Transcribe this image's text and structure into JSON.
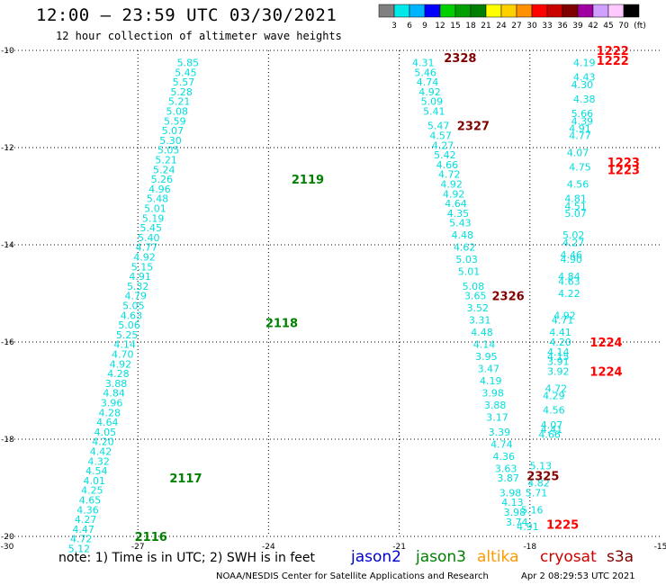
{
  "header": {
    "title": "12:00 – 23:59 UTC 03/30/2021",
    "subtitle": "12 hour collection of altimeter wave heights"
  },
  "colorbar": {
    "unit": "(ft)",
    "ticks": [
      "3",
      "6",
      "9",
      "12",
      "15",
      "18",
      "21",
      "24",
      "27",
      "30",
      "33",
      "36",
      "39",
      "42",
      "45",
      "70"
    ],
    "colors": [
      "#808080",
      "#00e8e8",
      "#00b4ff",
      "#0000ff",
      "#00d000",
      "#00a000",
      "#008000",
      "#ffff00",
      "#ffd000",
      "#ff9000",
      "#ff0000",
      "#c80000",
      "#800000",
      "#a000a0",
      "#d0a0ff",
      "#ffc8ff",
      "#000000"
    ]
  },
  "footer": {
    "note": "note: 1) Time is in UTC; 2) SWH is in feet",
    "satellites": [
      {
        "name": "jason2",
        "color": "#0000cc"
      },
      {
        "name": "jason3",
        "color": "#008000"
      },
      {
        "name": "altika",
        "color": "#ff9900"
      },
      {
        "name": "cryosat",
        "color": "#cc0000"
      },
      {
        "name": "s3a",
        "color": "#800000"
      }
    ],
    "credit": "NOAA/NESDIS Center for Satellite Applications and Research",
    "timestamp": "Apr  2 08:29:53 UTC 2021"
  },
  "chart_data": {
    "type": "scatter",
    "xlim": [
      -30,
      -15
    ],
    "ylim": [
      -20,
      -10
    ],
    "xticks": [
      "-30",
      "-27",
      "-24",
      "-21",
      "-18",
      "-15"
    ],
    "yticks": [
      "-10",
      "-12",
      "-14",
      "-16",
      "-18",
      "-20"
    ],
    "grid": true,
    "value_color": "#00dede",
    "tracks": [
      {
        "points": [
          {
            "lon": -25.85,
            "lat": -10.25,
            "v": "5.85"
          },
          {
            "lon": -25.9,
            "lat": -10.45,
            "v": "5.45"
          },
          {
            "lon": -25.95,
            "lat": -10.65,
            "v": "5.57"
          },
          {
            "lon": -26.0,
            "lat": -10.85,
            "v": "5.28"
          },
          {
            "lon": -26.05,
            "lat": -11.05,
            "v": "5.21"
          },
          {
            "lon": -26.1,
            "lat": -11.25,
            "v": "5.08"
          },
          {
            "lon": -26.15,
            "lat": -11.45,
            "v": "5.59"
          },
          {
            "lon": -26.2,
            "lat": -11.65,
            "v": "5.07"
          },
          {
            "lon": -26.25,
            "lat": -11.85,
            "v": "5.30"
          },
          {
            "lon": -26.3,
            "lat": -12.05,
            "v": "5.05"
          },
          {
            "lon": -26.35,
            "lat": -12.25,
            "v": "5.21"
          },
          {
            "lon": -26.4,
            "lat": -12.45,
            "v": "5.24"
          },
          {
            "lon": -26.45,
            "lat": -12.65,
            "v": "5.26"
          },
          {
            "lon": -26.5,
            "lat": -12.85,
            "v": "4.96"
          },
          {
            "lon": -26.55,
            "lat": -13.05,
            "v": "5.48"
          },
          {
            "lon": -26.6,
            "lat": -13.25,
            "v": "5.01"
          },
          {
            "lon": -26.65,
            "lat": -13.45,
            "v": "5.19"
          },
          {
            "lon": -26.7,
            "lat": -13.65,
            "v": "5.45"
          },
          {
            "lon": -26.75,
            "lat": -13.85,
            "v": "5.40"
          },
          {
            "lon": -26.8,
            "lat": -14.05,
            "v": "4.77"
          },
          {
            "lon": -26.85,
            "lat": -14.25,
            "v": "4.92"
          },
          {
            "lon": -26.9,
            "lat": -14.45,
            "v": "5.15"
          },
          {
            "lon": -26.95,
            "lat": -14.65,
            "v": "4.91"
          },
          {
            "lon": -27.0,
            "lat": -14.85,
            "v": "5.32"
          },
          {
            "lon": -27.05,
            "lat": -15.05,
            "v": "4.79"
          },
          {
            "lon": -27.1,
            "lat": -15.25,
            "v": "5.05"
          },
          {
            "lon": -27.15,
            "lat": -15.45,
            "v": "4.63"
          },
          {
            "lon": -27.2,
            "lat": -15.65,
            "v": "5.06"
          },
          {
            "lon": -27.25,
            "lat": -15.85,
            "v": "5.25"
          },
          {
            "lon": -27.3,
            "lat": -16.05,
            "v": "4.14"
          },
          {
            "lon": -27.35,
            "lat": -16.25,
            "v": "4.70"
          },
          {
            "lon": -27.4,
            "lat": -16.45,
            "v": "4.92"
          },
          {
            "lon": -27.45,
            "lat": -16.65,
            "v": "4.28"
          },
          {
            "lon": -27.5,
            "lat": -16.85,
            "v": "3.88"
          },
          {
            "lon": -27.55,
            "lat": -17.05,
            "v": "4.84"
          },
          {
            "lon": -27.6,
            "lat": -17.25,
            "v": "3.96"
          },
          {
            "lon": -27.65,
            "lat": -17.45,
            "v": "4.28"
          },
          {
            "lon": -27.7,
            "lat": -17.65,
            "v": "4.64"
          },
          {
            "lon": -27.75,
            "lat": -17.85,
            "v": "4.05"
          },
          {
            "lon": -27.8,
            "lat": -18.05,
            "v": "4.20"
          },
          {
            "lon": -27.85,
            "lat": -18.25,
            "v": "4.42"
          },
          {
            "lon": -27.9,
            "lat": -18.45,
            "v": "4.32"
          },
          {
            "lon": -27.95,
            "lat": -18.65,
            "v": "4.54"
          },
          {
            "lon": -28.0,
            "lat": -18.85,
            "v": "4.01"
          },
          {
            "lon": -28.05,
            "lat": -19.05,
            "v": "4.25"
          },
          {
            "lon": -28.1,
            "lat": -19.25,
            "v": "4.65"
          },
          {
            "lon": -28.15,
            "lat": -19.45,
            "v": "4.36"
          },
          {
            "lon": -28.2,
            "lat": -19.65,
            "v": "4.27"
          },
          {
            "lon": -28.25,
            "lat": -19.85,
            "v": "4.47"
          },
          {
            "lon": -28.3,
            "lat": -20.05,
            "v": "4.72"
          },
          {
            "lon": -28.35,
            "lat": -20.25,
            "v": "5.12"
          }
        ]
      },
      {
        "points": [
          {
            "lon": -20.45,
            "lat": -10.25,
            "v": "4.31"
          },
          {
            "lon": -20.4,
            "lat": -10.45,
            "v": "5.46"
          },
          {
            "lon": -20.35,
            "lat": -10.65,
            "v": "4.74"
          },
          {
            "lon": -20.3,
            "lat": -10.85,
            "v": "4.92"
          },
          {
            "lon": -20.25,
            "lat": -11.05,
            "v": "5.09"
          },
          {
            "lon": -20.2,
            "lat": -11.25,
            "v": "5.41"
          },
          {
            "lon": -20.1,
            "lat": -11.55,
            "v": "5.47"
          },
          {
            "lon": -20.05,
            "lat": -11.75,
            "v": "4.57"
          },
          {
            "lon": -20.0,
            "lat": -11.95,
            "v": "4.27"
          },
          {
            "lon": -19.95,
            "lat": -12.15,
            "v": "5.42"
          },
          {
            "lon": -19.9,
            "lat": -12.35,
            "v": "4.66"
          },
          {
            "lon": -19.85,
            "lat": -12.55,
            "v": "4.72"
          },
          {
            "lon": -19.8,
            "lat": -12.75,
            "v": "4.92"
          },
          {
            "lon": -19.75,
            "lat": -12.95,
            "v": "4.92"
          },
          {
            "lon": -19.7,
            "lat": -13.15,
            "v": "4.64"
          },
          {
            "lon": -19.65,
            "lat": -13.35,
            "v": "4.35"
          },
          {
            "lon": -19.6,
            "lat": -13.55,
            "v": "5.43"
          },
          {
            "lon": -19.55,
            "lat": -13.8,
            "v": "4.48"
          },
          {
            "lon": -19.5,
            "lat": -14.05,
            "v": "4.62"
          },
          {
            "lon": -19.45,
            "lat": -14.3,
            "v": "5.03"
          },
          {
            "lon": -19.4,
            "lat": -14.55,
            "v": "5.01"
          },
          {
            "lon": -19.3,
            "lat": -14.85,
            "v": "5.08"
          },
          {
            "lon": -19.25,
            "lat": -15.05,
            "v": "3.65"
          },
          {
            "lon": -19.2,
            "lat": -15.3,
            "v": "3.52"
          },
          {
            "lon": -19.15,
            "lat": -15.55,
            "v": "3.31"
          },
          {
            "lon": -19.1,
            "lat": -15.8,
            "v": "4.48"
          },
          {
            "lon": -19.05,
            "lat": -16.05,
            "v": "4.14"
          },
          {
            "lon": -19.0,
            "lat": -16.3,
            "v": "3.95"
          },
          {
            "lon": -18.95,
            "lat": -16.55,
            "v": "3.47"
          },
          {
            "lon": -18.9,
            "lat": -16.8,
            "v": "4.19"
          },
          {
            "lon": -18.85,
            "lat": -17.05,
            "v": "3.98"
          },
          {
            "lon": -18.8,
            "lat": -17.3,
            "v": "3.88"
          },
          {
            "lon": -18.75,
            "lat": -17.55,
            "v": "3.17"
          },
          {
            "lon": -18.7,
            "lat": -17.85,
            "v": "3.39"
          },
          {
            "lon": -18.65,
            "lat": -18.1,
            "v": "4.74"
          },
          {
            "lon": -18.6,
            "lat": -18.35,
            "v": "4.36"
          },
          {
            "lon": -18.55,
            "lat": -18.6,
            "v": "3.63"
          },
          {
            "lon": -18.5,
            "lat": -18.8,
            "v": "3.87"
          },
          {
            "lon": -18.45,
            "lat": -19.1,
            "v": "3.98"
          },
          {
            "lon": -18.4,
            "lat": -19.3,
            "v": "4.13"
          },
          {
            "lon": -18.35,
            "lat": -19.5,
            "v": "3.98"
          },
          {
            "lon": -18.3,
            "lat": -19.7,
            "v": "3.74"
          }
        ]
      },
      {
        "points": [
          {
            "lon": -16.75,
            "lat": -10.25,
            "v": "4.19"
          },
          {
            "lon": -16.75,
            "lat": -10.55,
            "v": "4.43"
          },
          {
            "lon": -16.8,
            "lat": -10.7,
            "v": "4.30"
          },
          {
            "lon": -16.75,
            "lat": -11.0,
            "v": "4.38"
          },
          {
            "lon": -16.8,
            "lat": -11.3,
            "v": "5.66"
          },
          {
            "lon": -16.8,
            "lat": -11.45,
            "v": "4.39"
          },
          {
            "lon": -16.85,
            "lat": -11.6,
            "v": "4.91"
          },
          {
            "lon": -16.85,
            "lat": -11.75,
            "v": "4.77"
          },
          {
            "lon": -16.9,
            "lat": -12.1,
            "v": "4.07"
          },
          {
            "lon": -16.85,
            "lat": -12.4,
            "v": "4.75"
          },
          {
            "lon": -16.9,
            "lat": -12.75,
            "v": "4.56"
          },
          {
            "lon": -16.95,
            "lat": -13.05,
            "v": "4.81"
          },
          {
            "lon": -16.95,
            "lat": -13.2,
            "v": "4.51"
          },
          {
            "lon": -16.95,
            "lat": -13.35,
            "v": "5.07"
          },
          {
            "lon": -17.0,
            "lat": -13.8,
            "v": "5.02"
          },
          {
            "lon": -17.0,
            "lat": -13.95,
            "v": "4.27"
          },
          {
            "lon": -17.05,
            "lat": -14.2,
            "v": "4.46"
          },
          {
            "lon": -17.05,
            "lat": -14.3,
            "v": "4.90"
          },
          {
            "lon": -17.1,
            "lat": -14.65,
            "v": "4.84"
          },
          {
            "lon": -17.1,
            "lat": -14.75,
            "v": "4.63"
          },
          {
            "lon": -17.1,
            "lat": -15.0,
            "v": "4.22"
          },
          {
            "lon": -17.2,
            "lat": -15.45,
            "v": "4.92"
          },
          {
            "lon": -17.25,
            "lat": -15.55,
            "v": "4.71"
          },
          {
            "lon": -17.3,
            "lat": -15.8,
            "v": "4.41"
          },
          {
            "lon": -17.3,
            "lat": -16.0,
            "v": "4.20"
          },
          {
            "lon": -17.35,
            "lat": -16.2,
            "v": "4.14"
          },
          {
            "lon": -17.35,
            "lat": -16.3,
            "v": "4.15"
          },
          {
            "lon": -17.35,
            "lat": -16.4,
            "v": "3.91"
          },
          {
            "lon": -17.35,
            "lat": -16.6,
            "v": "3.92"
          },
          {
            "lon": -17.4,
            "lat": -16.95,
            "v": "4.72"
          },
          {
            "lon": -17.45,
            "lat": -17.1,
            "v": "4.29"
          },
          {
            "lon": -17.45,
            "lat": -17.4,
            "v": "4.56"
          },
          {
            "lon": -17.5,
            "lat": -17.7,
            "v": "4.07"
          },
          {
            "lon": -17.5,
            "lat": -17.8,
            "v": "4.41"
          },
          {
            "lon": -17.55,
            "lat": -17.9,
            "v": "4.66"
          },
          {
            "lon": -17.75,
            "lat": -18.55,
            "v": "5.13"
          },
          {
            "lon": -17.8,
            "lat": -18.9,
            "v": "4.82"
          },
          {
            "lon": -17.85,
            "lat": -19.1,
            "v": "5.71"
          },
          {
            "lon": -17.95,
            "lat": -19.45,
            "v": "5.16"
          },
          {
            "lon": -18.05,
            "lat": -19.8,
            "v": "4.91"
          }
        ]
      }
    ],
    "pass_labels": [
      {
        "text": "2119",
        "lon": -23.1,
        "lat": -12.65,
        "color": "#008000"
      },
      {
        "text": "2118",
        "lon": -23.7,
        "lat": -15.6,
        "color": "#008000"
      },
      {
        "text": "2117",
        "lon": -25.9,
        "lat": -18.8,
        "color": "#008000"
      },
      {
        "text": "2116",
        "lon": -26.7,
        "lat": -20.0,
        "color": "#008000"
      },
      {
        "text": "2328",
        "lon": -19.6,
        "lat": -10.15,
        "color": "#800000"
      },
      {
        "text": "2327",
        "lon": -19.3,
        "lat": -11.55,
        "color": "#800000"
      },
      {
        "text": "2326",
        "lon": -18.5,
        "lat": -15.05,
        "color": "#800000"
      },
      {
        "text": "2325",
        "lon": -17.7,
        "lat": -18.75,
        "color": "#800000"
      },
      {
        "text": "1222",
        "lon": -16.1,
        "lat": -10.0,
        "color": "#ff0000"
      },
      {
        "text": "1222",
        "lon": -16.1,
        "lat": -10.2,
        "color": "#ff0000"
      },
      {
        "text": "1223",
        "lon": -15.85,
        "lat": -12.3,
        "color": "#ff0000"
      },
      {
        "text": "1223",
        "lon": -15.85,
        "lat": -12.45,
        "color": "#ff0000"
      },
      {
        "text": "1224",
        "lon": -16.25,
        "lat": -16.0,
        "color": "#ff0000"
      },
      {
        "text": "1224",
        "lon": -16.25,
        "lat": -16.6,
        "color": "#ff0000"
      },
      {
        "text": "1225",
        "lon": -17.25,
        "lat": -19.75,
        "color": "#ff0000"
      }
    ]
  }
}
